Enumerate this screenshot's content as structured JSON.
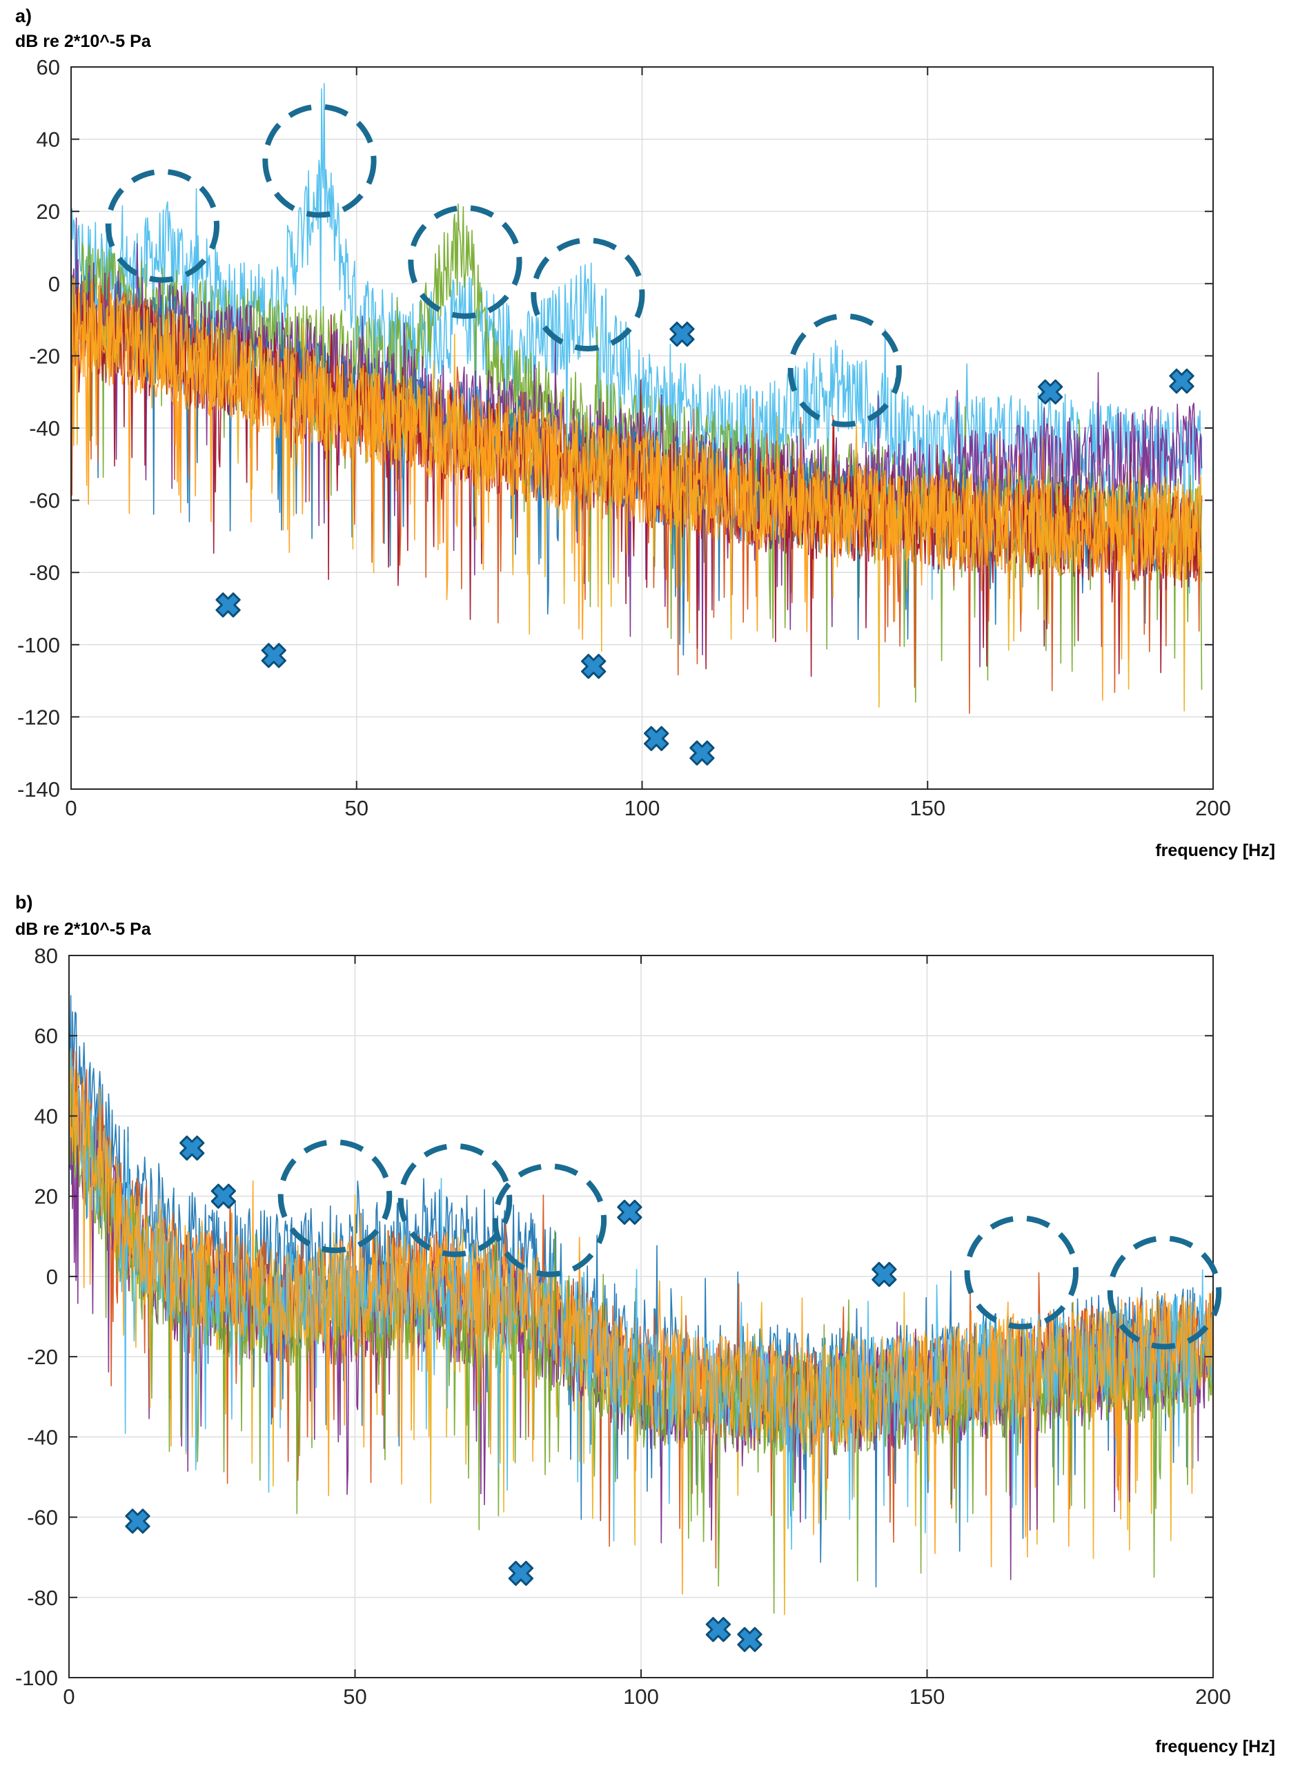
{
  "chart_data": [
    {
      "type": "line",
      "panel_label": "a)",
      "title": "",
      "ylabel": "dB re 2*10^-5 Pa",
      "xlabel": "frequency [Hz]",
      "xlim": [
        0,
        200
      ],
      "ylim": [
        -140,
        60
      ],
      "xticks": [
        0,
        50,
        100,
        150,
        200
      ],
      "yticks": [
        -140,
        -120,
        -100,
        -80,
        -60,
        -40,
        -20,
        0,
        20,
        40,
        60
      ],
      "grid": true,
      "legend": "none",
      "colors": [
        "#1f77b4",
        "#d95319",
        "#edb120",
        "#7e2f8e",
        "#77ac30",
        "#4dbeee",
        "#a2142f",
        "#ff9f1a"
      ],
      "series": [
        {
          "color": "#4dbeee",
          "x": [
            0,
            10,
            17,
            25,
            35,
            44,
            50,
            60,
            70,
            80,
            91,
            100,
            110,
            120,
            134,
            150,
            170,
            185,
            198
          ],
          "y": [
            8,
            2,
            10,
            -2,
            -8,
            28,
            -8,
            -16,
            -10,
            -20,
            -5,
            -32,
            -36,
            -42,
            -28,
            -45,
            -42,
            -47,
            -48
          ]
        },
        {
          "color": "#77ac30",
          "x": [
            0,
            20,
            40,
            60,
            66,
            69,
            75,
            90,
            120,
            150,
            198
          ],
          "y": [
            0,
            -10,
            -18,
            -24,
            8,
            10,
            -28,
            -38,
            -52,
            -60,
            -66
          ]
        },
        {
          "color": "#7e2f8e",
          "x": [
            0,
            40,
            80,
            120,
            150,
            175,
            198
          ],
          "y": [
            -5,
            -22,
            -40,
            -55,
            -55,
            -50,
            -45
          ]
        },
        {
          "color": "#1f77b4",
          "x": [
            0,
            40,
            80,
            120,
            150,
            198
          ],
          "y": [
            -8,
            -28,
            -45,
            -60,
            -64,
            -68
          ]
        },
        {
          "color": "#d95319",
          "x": [
            0,
            40,
            80,
            120,
            150,
            198
          ],
          "y": [
            -10,
            -30,
            -47,
            -60,
            -66,
            -70
          ]
        },
        {
          "color": "#a2142f",
          "x": [
            0,
            40,
            80,
            120,
            150,
            198
          ],
          "y": [
            -12,
            -30,
            -48,
            -62,
            -66,
            -72
          ]
        },
        {
          "color": "#edb120",
          "x": [
            0,
            40,
            80,
            120,
            150,
            198
          ],
          "y": [
            -10,
            -30,
            -46,
            -60,
            -66,
            -70
          ]
        },
        {
          "color": "#ff9f1a",
          "x": [
            0,
            40,
            80,
            120,
            150,
            198
          ],
          "y": [
            -12,
            -32,
            -48,
            -60,
            -65,
            -68
          ]
        }
      ],
      "annotations": {
        "circles": [
          {
            "x": 16,
            "y": 16,
            "rx": 9.5,
            "ry": 15
          },
          {
            "x": 43.5,
            "y": 34,
            "rx": 9.5,
            "ry": 15
          },
          {
            "x": 69,
            "y": 6,
            "rx": 9.5,
            "ry": 15
          },
          {
            "x": 90.5,
            "y": -3,
            "rx": 9.5,
            "ry": 15
          },
          {
            "x": 135.5,
            "y": -24,
            "rx": 9.5,
            "ry": 15
          }
        ],
        "markers": [
          {
            "x": 27.5,
            "y": -89
          },
          {
            "x": 35.5,
            "y": -103
          },
          {
            "x": 91.5,
            "y": -106
          },
          {
            "x": 102.5,
            "y": -126
          },
          {
            "x": 110.5,
            "y": -130
          },
          {
            "x": 107,
            "y": -14
          },
          {
            "x": 171.5,
            "y": -30
          },
          {
            "x": 194.5,
            "y": -27
          }
        ]
      }
    },
    {
      "type": "line",
      "panel_label": "b)",
      "title": "",
      "ylabel": "dB re 2*10^-5 Pa",
      "xlabel": "frequency [Hz]",
      "xlim": [
        0,
        200
      ],
      "ylim": [
        -100,
        80
      ],
      "xticks": [
        0,
        50,
        100,
        150,
        200
      ],
      "yticks": [
        -100,
        -80,
        -60,
        -40,
        -20,
        0,
        20,
        40,
        60,
        80
      ],
      "grid": true,
      "legend": "none",
      "colors": [
        "#1f77b4",
        "#d95319",
        "#edb120",
        "#7e2f8e",
        "#77ac30",
        "#4dbeee",
        "#a2142f",
        "#ff9f1a"
      ],
      "series": [
        {
          "color": "#1f77b4",
          "x": [
            0,
            5,
            10,
            20,
            30,
            50,
            70,
            80,
            95,
            110,
            130,
            150,
            170,
            190,
            200
          ],
          "y": [
            60,
            40,
            25,
            10,
            5,
            5,
            10,
            5,
            -15,
            -25,
            -25,
            -25,
            -20,
            -15,
            -15
          ]
        },
        {
          "color": "#d95319",
          "x": [
            0,
            10,
            20,
            40,
            60,
            80,
            100,
            130,
            160,
            200
          ],
          "y": [
            50,
            15,
            0,
            -5,
            0,
            -5,
            -25,
            -30,
            -25,
            -15
          ]
        },
        {
          "color": "#edb120",
          "x": [
            0,
            10,
            20,
            40,
            60,
            80,
            100,
            130,
            160,
            200
          ],
          "y": [
            45,
            10,
            -5,
            -8,
            -5,
            -8,
            -28,
            -32,
            -25,
            -18
          ]
        },
        {
          "color": "#7e2f8e",
          "x": [
            0,
            10,
            20,
            40,
            60,
            80,
            100,
            130,
            160,
            200
          ],
          "y": [
            40,
            8,
            -5,
            -10,
            -8,
            -10,
            -30,
            -32,
            -28,
            -20
          ]
        },
        {
          "color": "#77ac30",
          "x": [
            0,
            10,
            20,
            40,
            60,
            80,
            100,
            130,
            160,
            200
          ],
          "y": [
            40,
            8,
            -5,
            -10,
            -8,
            -12,
            -30,
            -32,
            -28,
            -22
          ]
        },
        {
          "color": "#4dbeee",
          "x": [
            0,
            10,
            20,
            40,
            60,
            80,
            100,
            130,
            160,
            200
          ],
          "y": [
            45,
            10,
            -2,
            -5,
            -3,
            -6,
            -25,
            -30,
            -24,
            -16
          ]
        },
        {
          "color": "#ff9f1a",
          "x": [
            0,
            10,
            20,
            40,
            60,
            80,
            100,
            130,
            160,
            200
          ],
          "y": [
            45,
            12,
            0,
            -5,
            0,
            -5,
            -25,
            -30,
            -24,
            -15
          ]
        }
      ],
      "annotations": {
        "circles": [
          {
            "x": 46.5,
            "y": 20,
            "rx": 9.5,
            "ry": 13.5
          },
          {
            "x": 67.5,
            "y": 19,
            "rx": 9.5,
            "ry": 13.5
          },
          {
            "x": 84,
            "y": 14,
            "rx": 9.5,
            "ry": 13.5
          },
          {
            "x": 166.5,
            "y": 1,
            "rx": 9.5,
            "ry": 13.5
          },
          {
            "x": 191.5,
            "y": -4,
            "rx": 9.5,
            "ry": 13.5
          }
        ],
        "markers": [
          {
            "x": 21.5,
            "y": 32
          },
          {
            "x": 27,
            "y": 20
          },
          {
            "x": 98,
            "y": 16
          },
          {
            "x": 142.5,
            "y": 0.5
          },
          {
            "x": 12,
            "y": -61
          },
          {
            "x": 79,
            "y": -74
          },
          {
            "x": 113.5,
            "y": -88
          },
          {
            "x": 119,
            "y": -90.5
          }
        ]
      }
    }
  ]
}
